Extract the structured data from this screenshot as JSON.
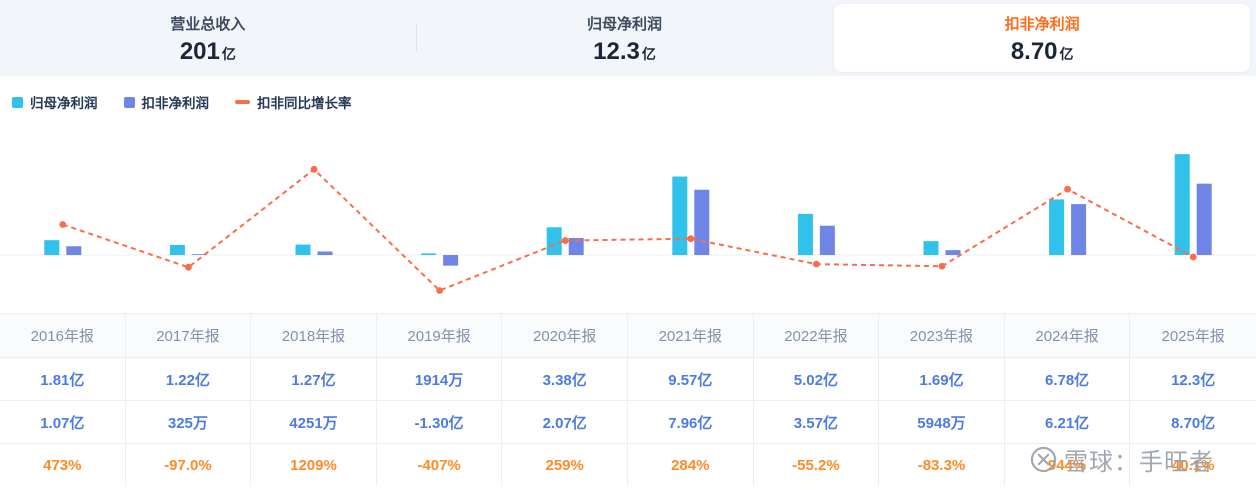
{
  "header": {
    "stats": [
      {
        "label": "营业总收入",
        "value": "201",
        "unit": "亿",
        "active": false
      },
      {
        "label": "归母净利润",
        "value": "12.3",
        "unit": "亿",
        "active": false
      },
      {
        "label": "扣非净利润",
        "value": "8.70",
        "unit": "亿",
        "active": true
      }
    ]
  },
  "legend": [
    {
      "key": "net-profit",
      "label": "归母净利润",
      "color": "#30c2ea",
      "marker": "square"
    },
    {
      "key": "non-gaap-profit",
      "label": "扣非净利润",
      "color": "#6f86e6",
      "marker": "square"
    },
    {
      "key": "yoy-growth",
      "label": "扣非同比增长率",
      "color": "#fb6c4b",
      "marker": "dash"
    }
  ],
  "chart_data": {
    "type": "bar+line",
    "title": "",
    "categories": [
      "2016年报",
      "2017年报",
      "2018年报",
      "2019年报",
      "2020年报",
      "2021年报",
      "2022年报",
      "2023年报",
      "2024年报",
      "2025年报"
    ],
    "series": [
      {
        "key": "net-profit",
        "name": "归母净利润",
        "type": "bar",
        "unit": "亿",
        "color": "#30c2ea",
        "values": [
          1.81,
          1.22,
          1.27,
          0.1914,
          3.38,
          9.57,
          5.02,
          1.69,
          6.78,
          12.3
        ]
      },
      {
        "key": "non-gaap-profit",
        "name": "扣非净利润",
        "type": "bar",
        "unit": "亿",
        "color": "#6f86e6",
        "values": [
          1.07,
          0.0325,
          0.4251,
          -1.3,
          2.07,
          7.96,
          3.57,
          0.5948,
          6.21,
          8.7
        ]
      },
      {
        "key": "yoy-growth",
        "name": "扣非同比增长率",
        "type": "line",
        "unit": "%",
        "color": "#fb6c4b",
        "values": [
          473,
          -97.0,
          1209,
          -407,
          259,
          284,
          -55.2,
          -83.3,
          944,
          40.1
        ]
      }
    ],
    "bar_axis": {
      "unit": "亿",
      "zero_baseline": true,
      "ylim": [
        -1.5,
        13
      ]
    },
    "line_axis": {
      "unit": "%",
      "range": [
        -500,
        1300
      ]
    },
    "grid": false,
    "legend_position": "top-left"
  },
  "table": {
    "columns": [
      "2016年报",
      "2017年报",
      "2018年报",
      "2019年报",
      "2020年报",
      "2021年报",
      "2022年报",
      "2023年报",
      "2024年报",
      "2025年报"
    ],
    "rows": [
      {
        "key": "net-profit",
        "name": "归母净利润",
        "color": "#4d7be4",
        "cells": [
          "1.81亿",
          "1.22亿",
          "1.27亿",
          "1914万",
          "3.38亿",
          "9.57亿",
          "5.02亿",
          "1.69亿",
          "6.78亿",
          "12.3亿"
        ]
      },
      {
        "key": "non-gaap-profit",
        "name": "扣非净利润",
        "color": "#4d7be4",
        "cells": [
          "1.07亿",
          "325万",
          "4251万",
          "-1.30亿",
          "2.07亿",
          "7.96亿",
          "3.57亿",
          "5948万",
          "6.21亿",
          "8.70亿"
        ]
      },
      {
        "key": "yoy-growth",
        "name": "扣非同比增长率",
        "color": "#ff8b25",
        "cells": [
          "473%",
          "-97.0%",
          "1209%",
          "-407%",
          "259%",
          "284%",
          "-55.2%",
          "-83.3%",
          "944%",
          "40.1%"
        ]
      }
    ]
  },
  "watermark": {
    "text": "雪球：手旺者"
  },
  "colors": {
    "header_bg": "#f2f5fa",
    "accent_orange": "#ff6c1a",
    "bar_cyan": "#30c2ea",
    "bar_blue": "#6f86e6",
    "line_orange": "#fb6c4b",
    "table_value_blue": "#4d7be4",
    "table_value_orange": "#ff8b25",
    "axis_line": "#e8edf5"
  }
}
